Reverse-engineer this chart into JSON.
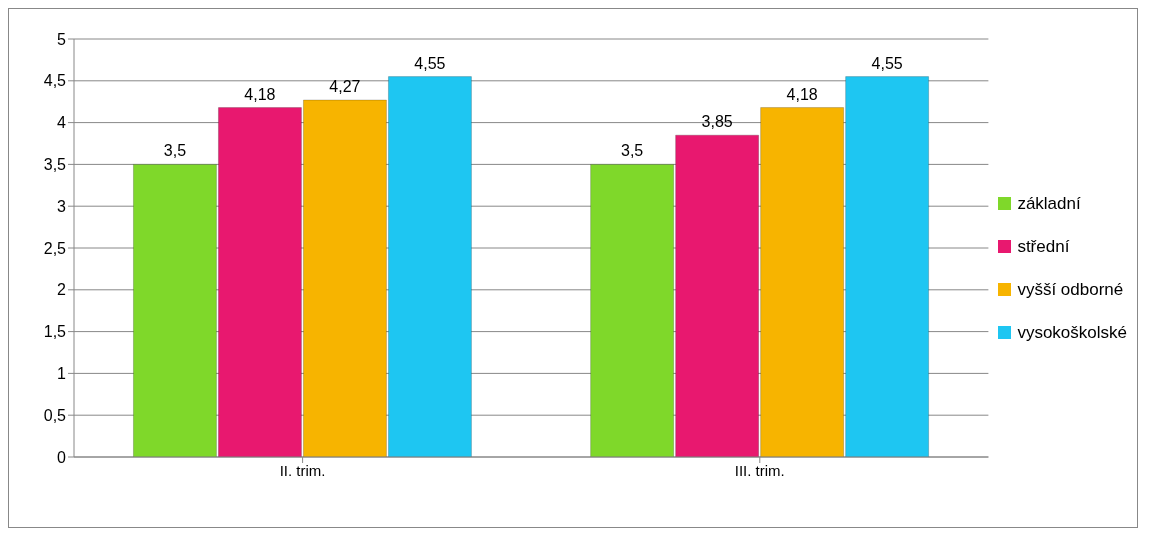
{
  "chart_data": {
    "type": "bar",
    "categories": [
      "II. trim.",
      "III. trim."
    ],
    "series": [
      {
        "name": "základní",
        "color": "#7fd82a",
        "values": [
          3.5,
          3.5
        ],
        "value_labels": [
          "3,5",
          "3,5"
        ]
      },
      {
        "name": "střední",
        "color": "#e8186f",
        "values": [
          4.18,
          3.85
        ],
        "value_labels": [
          "4,18",
          "3,85"
        ]
      },
      {
        "name": "vyšší odborné",
        "color": "#f7b400",
        "values": [
          4.27,
          4.18
        ],
        "value_labels": [
          "4,27",
          "4,18"
        ]
      },
      {
        "name": "vysokoškolské",
        "color": "#1ec6f2",
        "values": [
          4.55,
          4.55
        ],
        "value_labels": [
          "4,55",
          "4,55"
        ]
      }
    ],
    "ylim": [
      0,
      5
    ],
    "yticks": [
      0,
      {
        "value": 0.5,
        "label": "0,5"
      },
      1,
      {
        "value": 1.5,
        "label": "1,5"
      },
      2,
      {
        "value": 2.5,
        "label": "2,5"
      },
      3,
      {
        "value": 3.5,
        "label": "3,5"
      },
      4,
      {
        "value": 4.5,
        "label": "4,5"
      },
      5
    ],
    "grid": "y",
    "legend": "right"
  }
}
